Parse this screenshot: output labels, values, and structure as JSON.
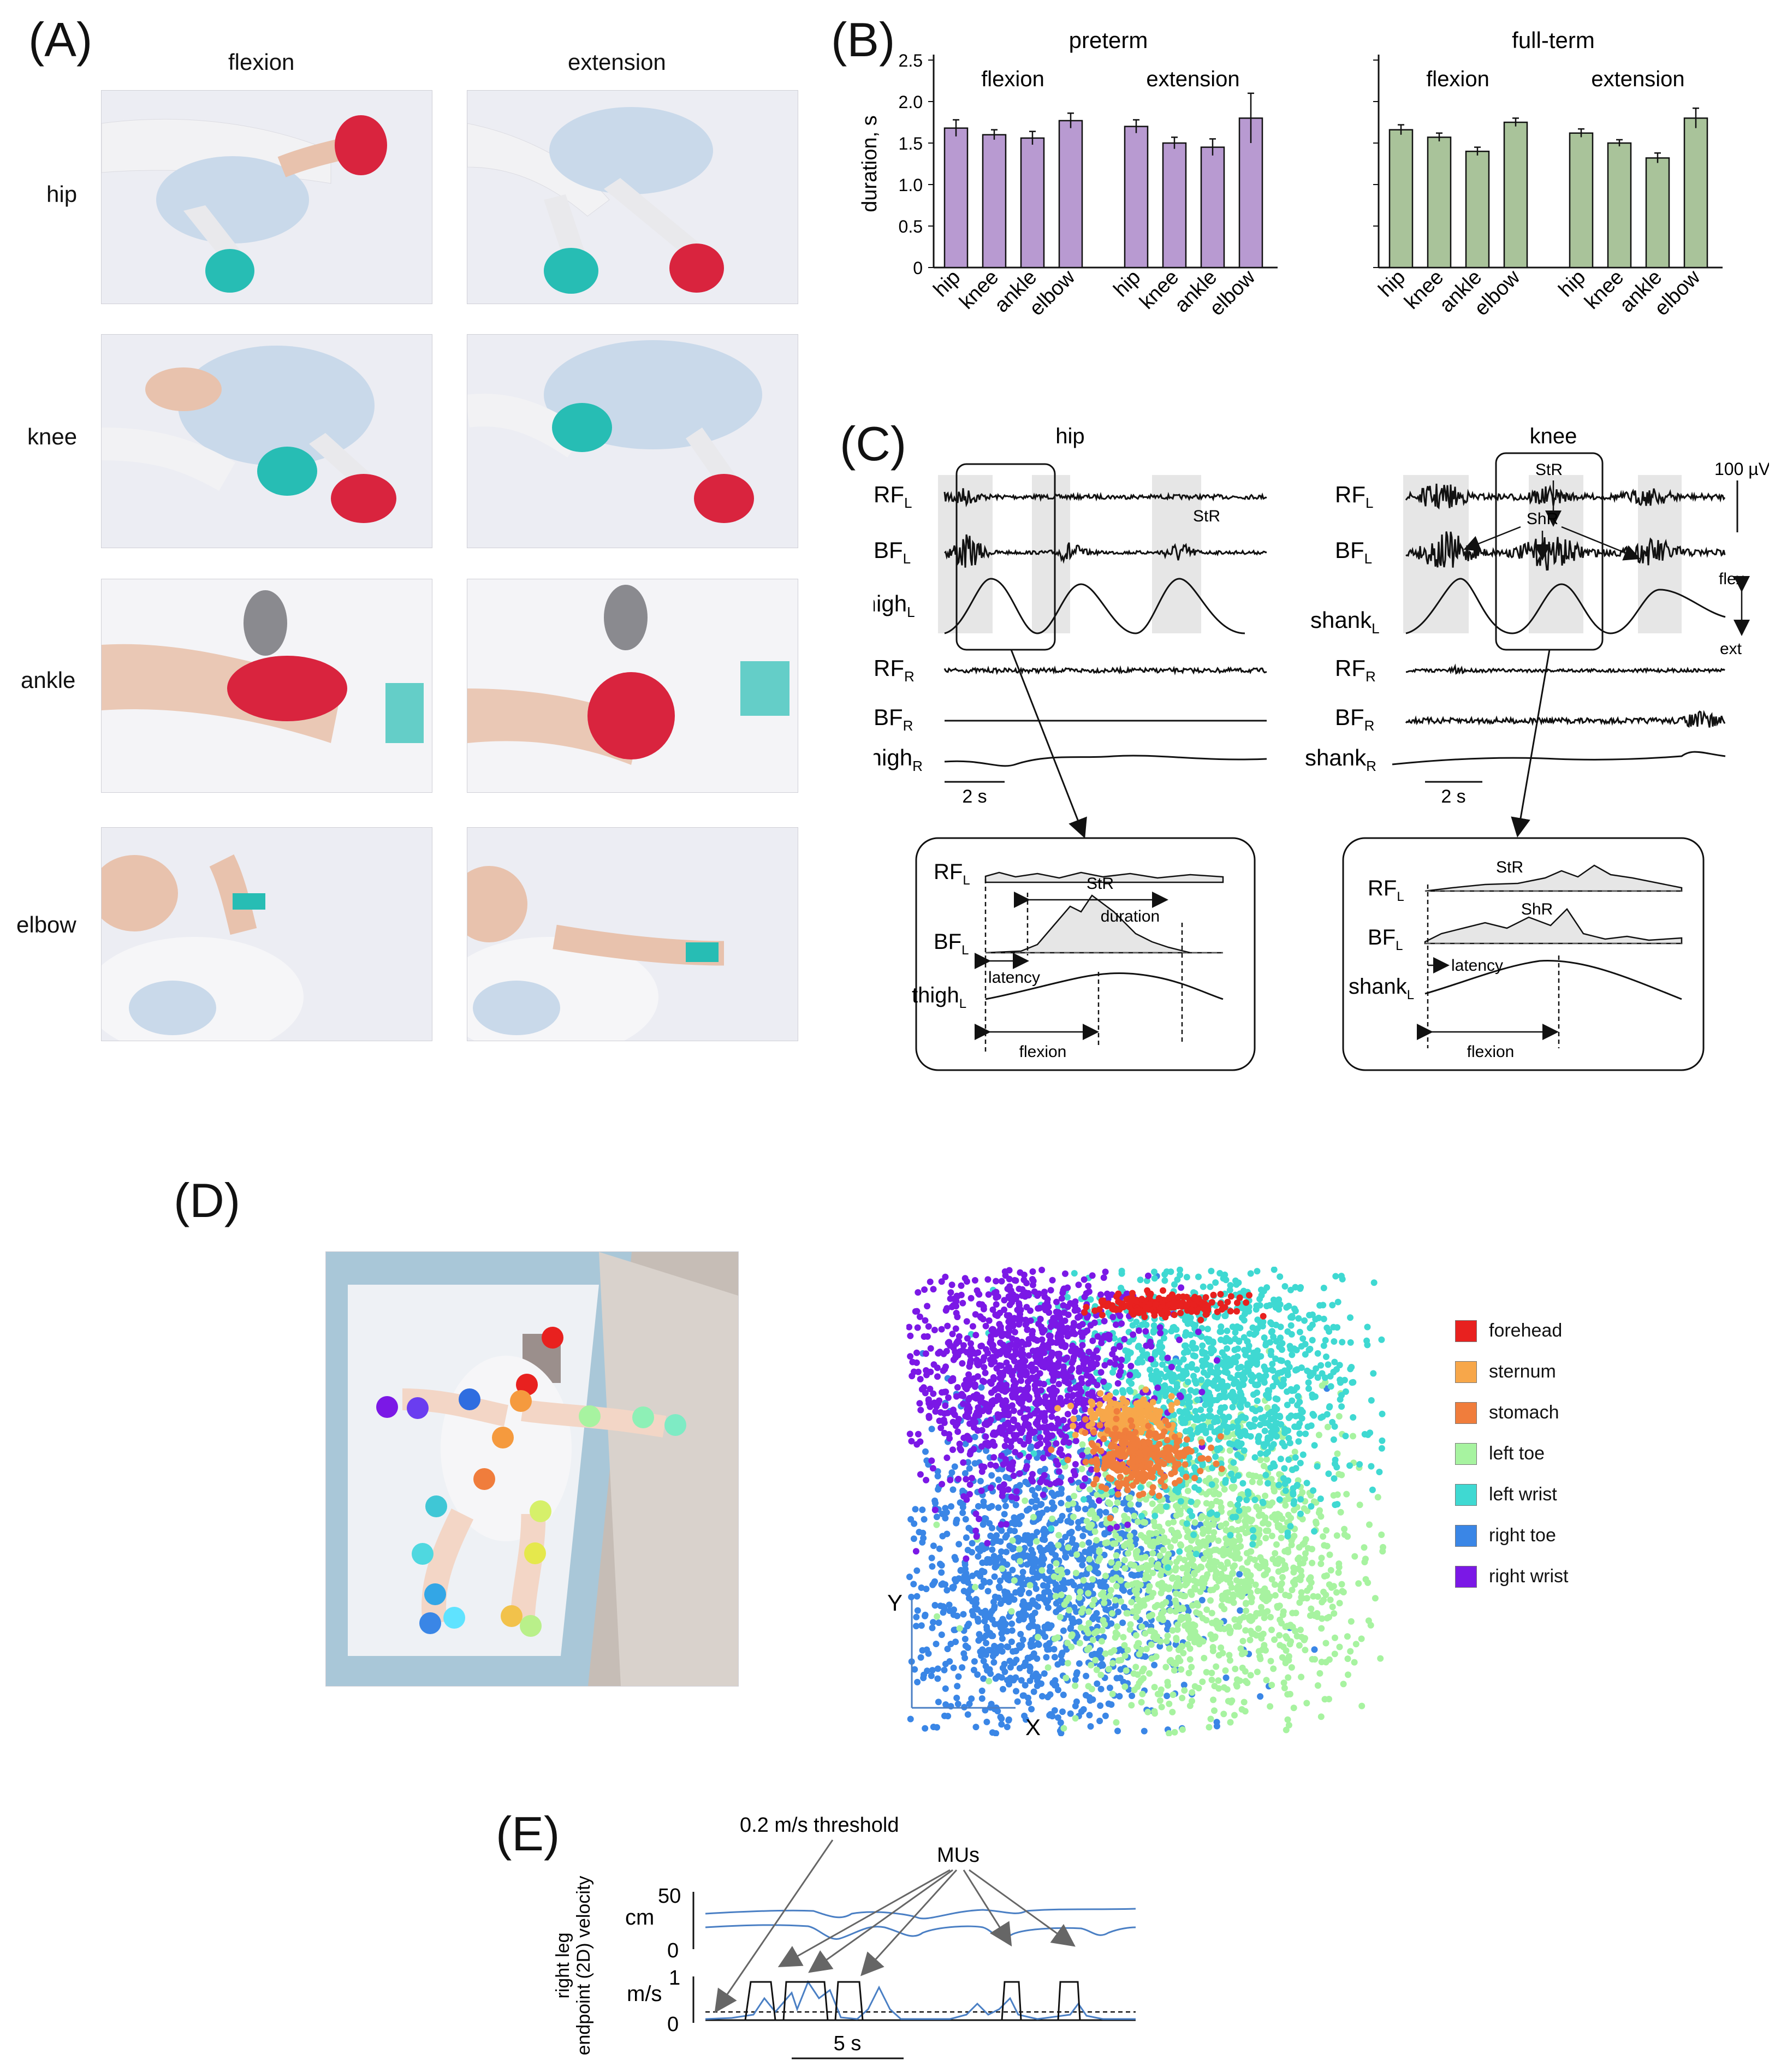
{
  "panels": {
    "a": "(A)",
    "b": "(B)",
    "c": "(C)",
    "d": "(D)",
    "e": "(E)"
  },
  "panel_a": {
    "col_headers": [
      "flexion",
      "extension"
    ],
    "row_labels": [
      "hip",
      "knee",
      "ankle",
      "elbow"
    ],
    "colors": {
      "bg": "#ecedf3",
      "glove": "#f2f2f4",
      "hand": "#e8c2ad",
      "red": "#d9243e",
      "teal": "#27bdb4",
      "body": "#c9d9ea"
    }
  },
  "chart_data": [
    {
      "type": "bar",
      "title": "preterm",
      "group_labels": [
        "flexion",
        "extension"
      ],
      "categories": [
        "hip",
        "knee",
        "ankle",
        "elbow",
        "hip",
        "knee",
        "ankle",
        "elbow"
      ],
      "values": [
        1.68,
        1.6,
        1.56,
        1.77,
        1.7,
        1.5,
        1.45,
        1.8
      ],
      "errors": [
        0.1,
        0.06,
        0.08,
        0.09,
        0.08,
        0.07,
        0.1,
        0.3
      ],
      "ylabel": "duration, s",
      "ylim": [
        0,
        2.5
      ],
      "yticks": [
        "0",
        "0.5",
        "1.0",
        "1.5",
        "2.0",
        "2.5"
      ],
      "color": "#b89ad1"
    },
    {
      "type": "bar",
      "title": "full-term",
      "group_labels": [
        "flexion",
        "extension"
      ],
      "categories": [
        "hip",
        "knee",
        "ankle",
        "elbow",
        "hip",
        "knee",
        "ankle",
        "elbow"
      ],
      "values": [
        1.66,
        1.57,
        1.4,
        1.75,
        1.62,
        1.5,
        1.32,
        1.8
      ],
      "errors": [
        0.06,
        0.05,
        0.05,
        0.05,
        0.05,
        0.04,
        0.06,
        0.12
      ],
      "ylim": [
        0,
        2.5
      ],
      "color": "#a9c39a"
    }
  ],
  "panel_c": {
    "hip_title": "hip",
    "knee_title": "knee",
    "scale_v": "100 µV",
    "scale_t": "2 s",
    "str": "StR",
    "shr": "ShR",
    "flex": "flex",
    "ext": "ext",
    "duration": "duration",
    "latency": "latency",
    "flexion": "flexion",
    "colors": {
      "signal": "#111111",
      "shade": "#e6e6e6"
    }
  },
  "panel_d": {
    "axis_y": "Y",
    "axis_x": "X",
    "legend": [
      {
        "label": "forehead",
        "color": "#e8211f"
      },
      {
        "label": "sternum",
        "color": "#f7a74a"
      },
      {
        "label": "stomach",
        "color": "#f07d3c"
      },
      {
        "label": "left toe",
        "color": "#a7f3a0"
      },
      {
        "label": "left wrist",
        "color": "#3fd9d2"
      },
      {
        "label": "right toe",
        "color": "#3a86e6"
      },
      {
        "label": "right wrist",
        "color": "#7b18e6"
      }
    ]
  },
  "panel_e": {
    "ylabel_line1": "right leg",
    "ylabel_line2": "endpoint (2D) velocity",
    "unit_cm": "cm",
    "unit_ms": "m/s",
    "tick_50": "50",
    "tick_0a": "0",
    "tick_1": "1",
    "tick_0b": "0",
    "threshold": "0.2 m/s threshold",
    "mus": "MUs",
    "time_scale": "5 s",
    "color": "#4a7fc4"
  }
}
